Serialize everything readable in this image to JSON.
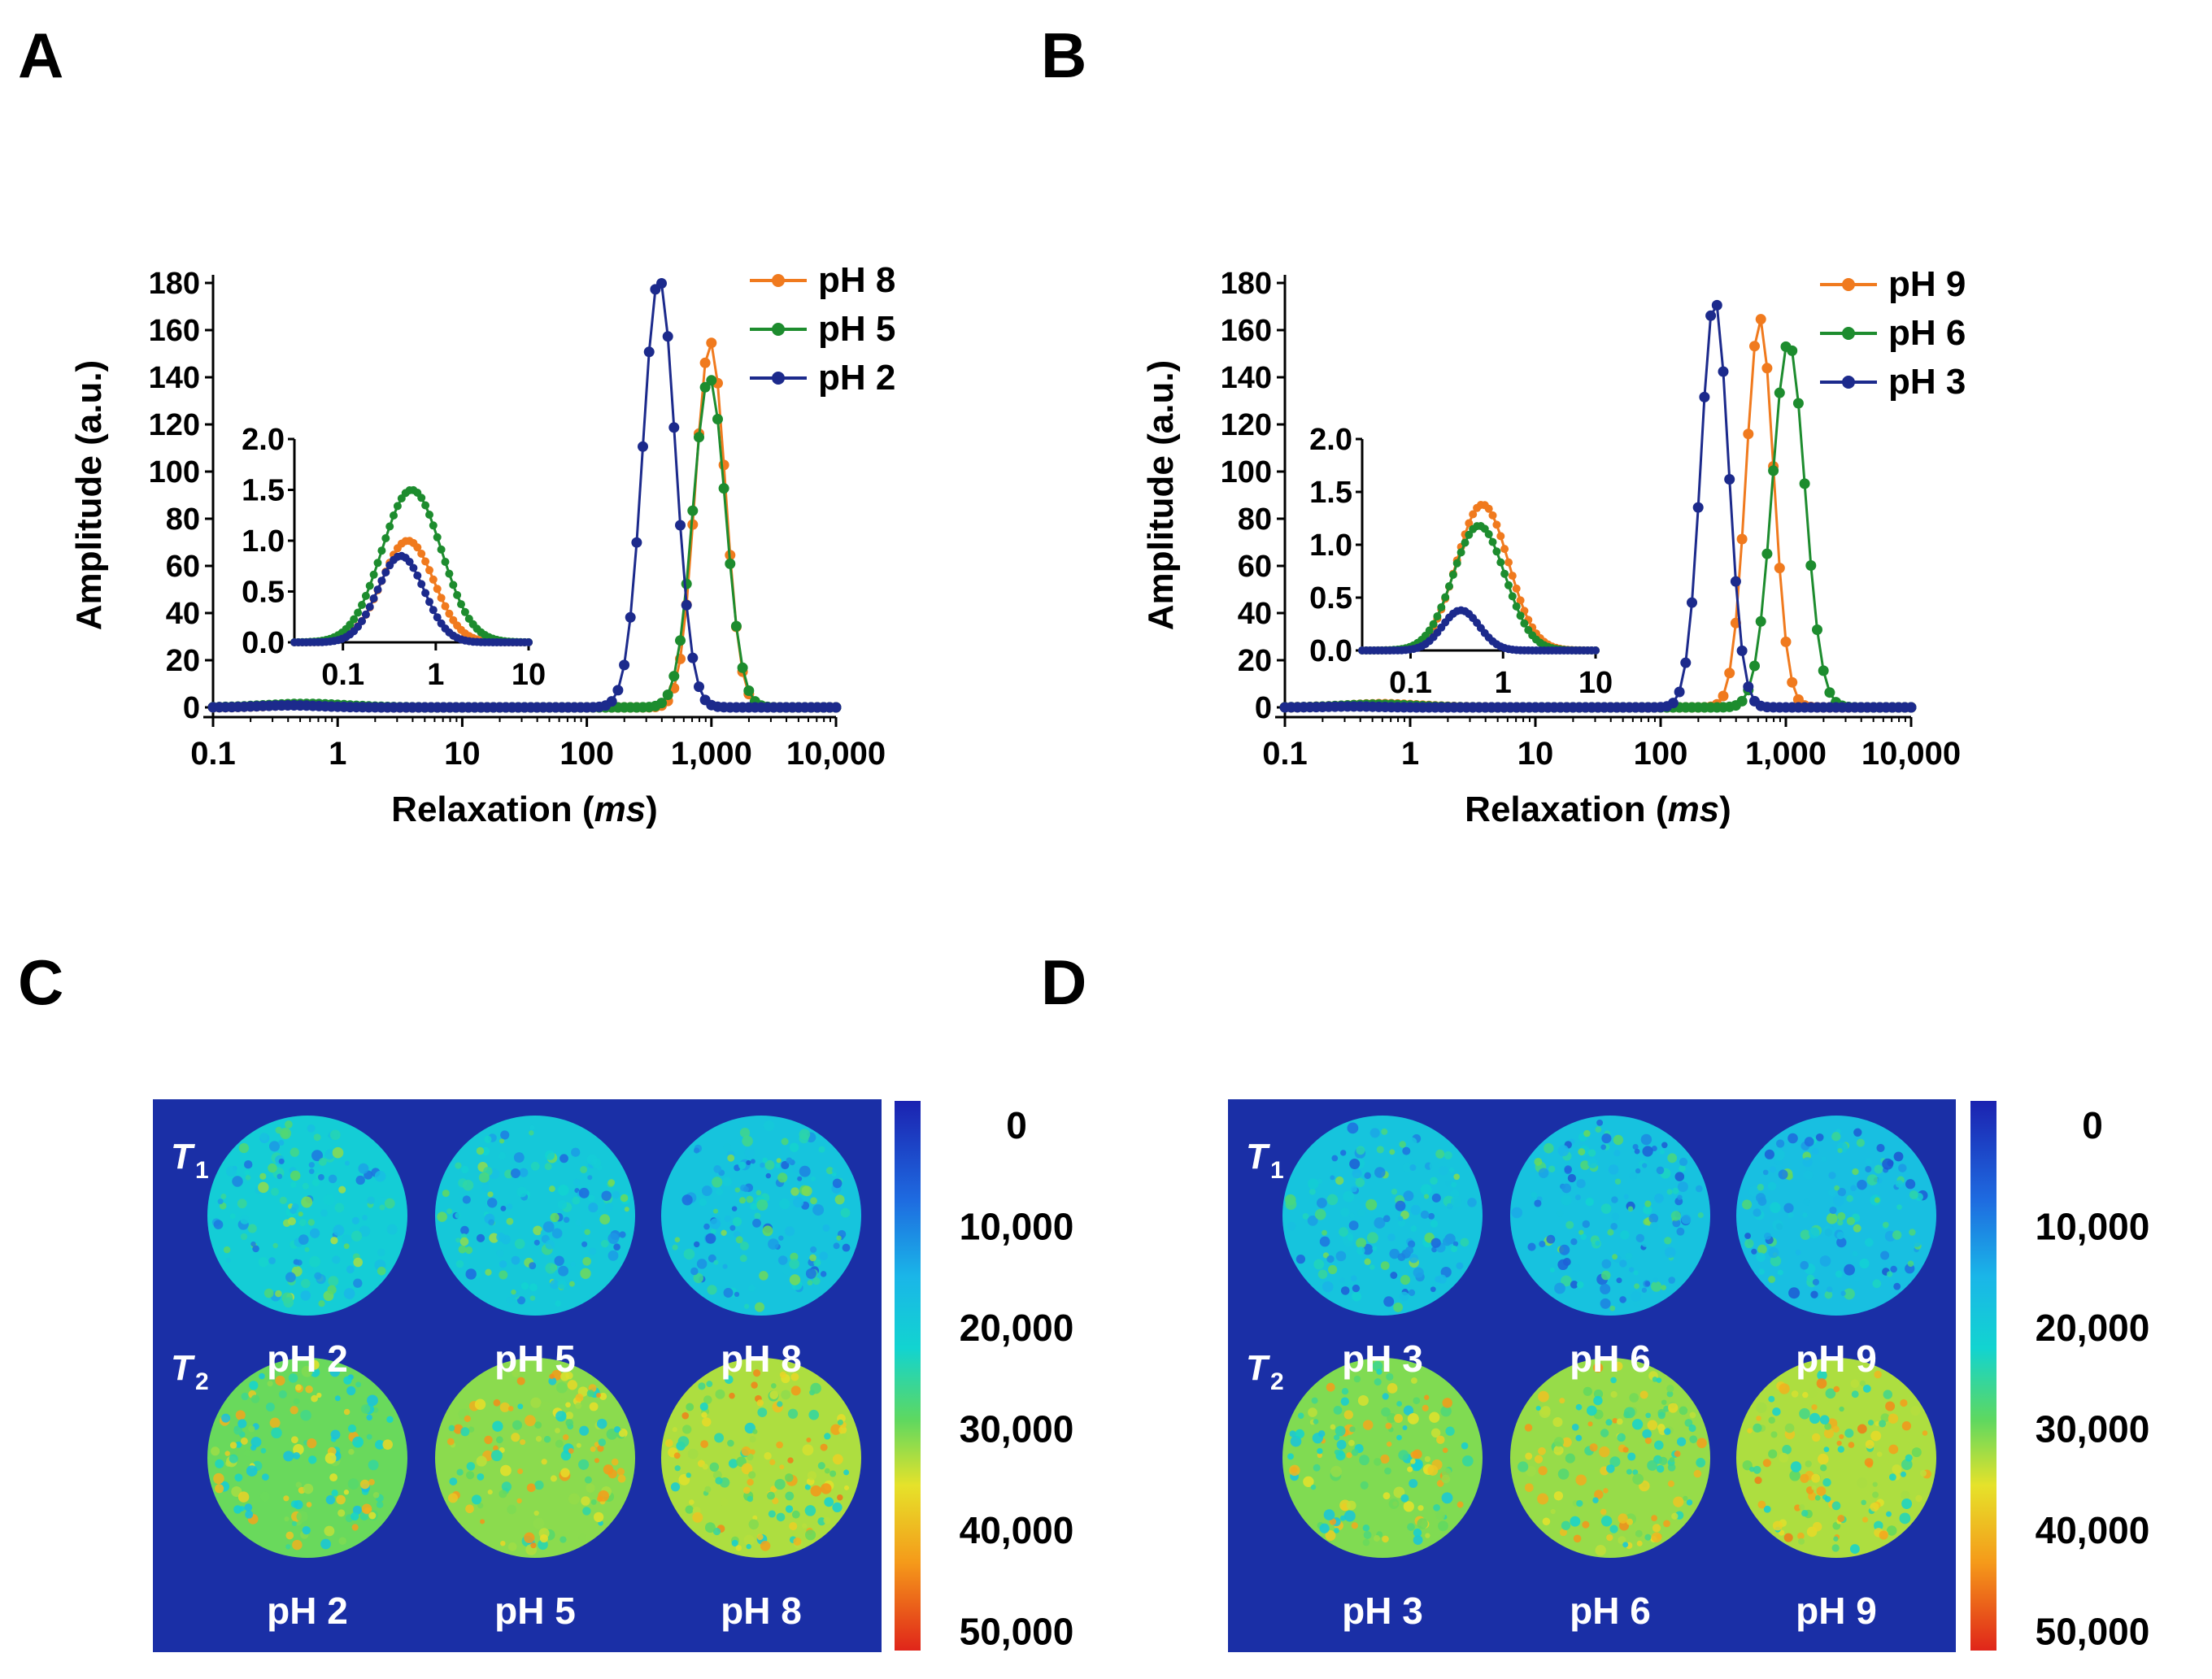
{
  "panel_labels": [
    "A",
    "B",
    "C",
    "D"
  ],
  "colors": {
    "orange": "#f07a1e",
    "green": "#1d8c2e",
    "navy": "#1c2a8c",
    "map_background": "#1a2fa6",
    "axis": "#000000",
    "map_text": "#ffffff"
  },
  "chart_data": [
    {
      "panel": "A",
      "type": "line",
      "xscale": "log",
      "xlim": [
        0.1,
        10000
      ],
      "ylim": [
        0,
        180
      ],
      "xlabel": "Relaxation",
      "xlabel_unit": "ms",
      "ylabel": "Amplitude (a.u.)",
      "x_ticks": [
        0.1,
        1,
        10,
        100,
        1000,
        10000
      ],
      "x_tick_labels": [
        "0.1",
        "1",
        "10",
        "100",
        "1,000",
        "10,000"
      ],
      "y_ticks": [
        0,
        20,
        40,
        60,
        80,
        100,
        120,
        140,
        160,
        180
      ],
      "y_tick_labels": [
        "0",
        "20",
        "40",
        "60",
        "80",
        "100",
        "120",
        "140",
        "160",
        "180"
      ],
      "legend_position": "top-right",
      "series": [
        {
          "name": "pH 8",
          "color": "orange",
          "peaks": [
            {
              "center": 0.5,
              "height": 1.0,
              "width": 0.28
            },
            {
              "center": 980,
              "height": 155,
              "width": 0.12
            }
          ]
        },
        {
          "name": "pH 5",
          "color": "green",
          "peaks": [
            {
              "center": 0.55,
              "height": 1.5,
              "width": 0.32
            },
            {
              "center": 960,
              "height": 140,
              "width": 0.13
            }
          ]
        },
        {
          "name": "pH 2",
          "color": "navy",
          "peaks": [
            {
              "center": 0.42,
              "height": 0.85,
              "width": 0.25
            },
            {
              "center": 380,
              "height": 182,
              "width": 0.13
            }
          ]
        }
      ],
      "inset": {
        "xlim": [
          0.03,
          10
        ],
        "ylim": [
          0,
          2.0
        ],
        "x_ticks": [
          0.1,
          1,
          10
        ],
        "x_tick_labels": [
          "0.1",
          "1",
          "10"
        ],
        "y_ticks": [
          0,
          0.5,
          1.0,
          1.5,
          2.0
        ],
        "y_tick_labels": [
          "0.0",
          "0.5",
          "1.0",
          "1.5",
          "2.0"
        ]
      }
    },
    {
      "panel": "B",
      "type": "line",
      "xscale": "log",
      "xlim": [
        0.1,
        10000
      ],
      "ylim": [
        0,
        180
      ],
      "xlabel": "Relaxation",
      "xlabel_unit": "ms",
      "ylabel": "Amplitude (a.u.)",
      "x_ticks": [
        0.1,
        1,
        10,
        100,
        1000,
        10000
      ],
      "x_tick_labels": [
        "0.1",
        "1",
        "10",
        "100",
        "1,000",
        "10,000"
      ],
      "y_ticks": [
        0,
        20,
        40,
        60,
        80,
        100,
        120,
        140,
        160,
        180
      ],
      "y_tick_labels": [
        "0",
        "20",
        "40",
        "60",
        "80",
        "100",
        "120",
        "140",
        "160",
        "180"
      ],
      "legend_position": "top-right",
      "series": [
        {
          "name": "pH 9",
          "color": "orange",
          "peaks": [
            {
              "center": 0.6,
              "height": 1.38,
              "width": 0.28
            },
            {
              "center": 620,
              "height": 165,
              "width": 0.11
            }
          ]
        },
        {
          "name": "pH 6",
          "color": "green",
          "peaks": [
            {
              "center": 0.55,
              "height": 1.18,
              "width": 0.28
            },
            {
              "center": 1050,
              "height": 155,
              "width": 0.13
            }
          ]
        },
        {
          "name": "pH 3",
          "color": "navy",
          "peaks": [
            {
              "center": 0.35,
              "height": 0.38,
              "width": 0.2
            },
            {
              "center": 270,
              "height": 173,
              "width": 0.11
            }
          ]
        }
      ],
      "inset": {
        "xlim": [
          0.03,
          10
        ],
        "ylim": [
          0,
          2.0
        ],
        "x_ticks": [
          0.1,
          1,
          10
        ],
        "x_tick_labels": [
          "0.1",
          "1",
          "10"
        ],
        "y_ticks": [
          0,
          0.5,
          1.0,
          1.5,
          2.0
        ],
        "y_tick_labels": [
          "0.0",
          "0.5",
          "1.0",
          "1.5",
          "2.0"
        ]
      }
    },
    {
      "panel": "C",
      "type": "heatmap",
      "row_labels": [
        "T",
        "T"
      ],
      "row_label_subscripts": [
        "1",
        "2"
      ],
      "t2_labels": [
        "pH 2",
        "pH 5",
        "pH 8"
      ],
      "bottom_labels": [
        "pH 2",
        "pH 5",
        "pH 8"
      ],
      "colorbar_range": [
        0,
        50000
      ],
      "colorbar_ticks": [
        "0",
        "10,000",
        "20,000",
        "30,000",
        "40,000",
        "50,000"
      ],
      "t1_mean_values": [
        21000,
        20000,
        19000
      ],
      "t2_mean_values": [
        29500,
        31000,
        32500
      ]
    },
    {
      "panel": "D",
      "type": "heatmap",
      "row_labels": [
        "T",
        "T"
      ],
      "row_label_subscripts": [
        "1",
        "2"
      ],
      "t2_labels": [
        "pH 3",
        "pH 6",
        "pH 9"
      ],
      "bottom_labels": [
        "pH 3",
        "pH 6",
        "pH 9"
      ],
      "colorbar_range": [
        0,
        50000
      ],
      "colorbar_ticks": [
        "0",
        "10,000",
        "20,000",
        "30,000",
        "40,000",
        "50,000"
      ],
      "t1_mean_values": [
        19000,
        18500,
        18000
      ],
      "t2_mean_values": [
        30500,
        31500,
        32500
      ]
    }
  ]
}
